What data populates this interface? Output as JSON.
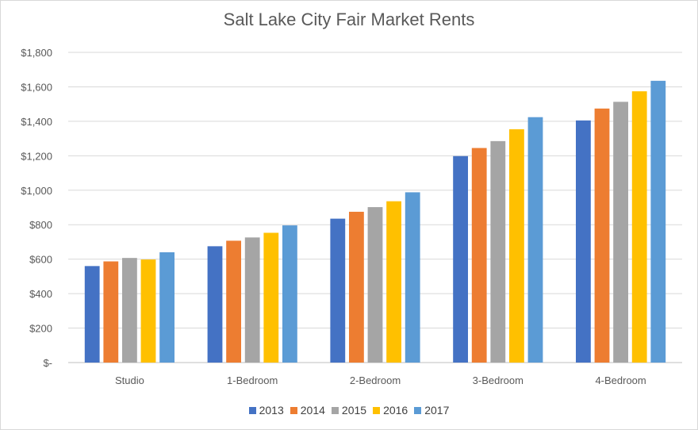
{
  "chart_data": {
    "type": "bar",
    "title": "Salt Lake City Fair Market Rents",
    "xlabel": "",
    "ylabel": "",
    "categories": [
      "Studio",
      "1-Bedroom",
      "2-Bedroom",
      "3-Bedroom",
      "4-Bedroom"
    ],
    "series": [
      {
        "name": "2013",
        "color": "#4472c4",
        "values": [
          560,
          675,
          835,
          1198,
          1405
        ]
      },
      {
        "name": "2014",
        "color": "#ed7d31",
        "values": [
          587,
          707,
          875,
          1245,
          1474
        ]
      },
      {
        "name": "2015",
        "color": "#a5a5a5",
        "values": [
          607,
          726,
          902,
          1285,
          1513
        ]
      },
      {
        "name": "2016",
        "color": "#ffc000",
        "values": [
          598,
          753,
          936,
          1354,
          1574
        ]
      },
      {
        "name": "2017",
        "color": "#5b9bd5",
        "values": [
          640,
          796,
          988,
          1424,
          1635
        ]
      }
    ],
    "ylim": [
      0,
      1800
    ],
    "y_ticks": [
      {
        "value": 0,
        "label": "$-"
      },
      {
        "value": 200,
        "label": "$200"
      },
      {
        "value": 400,
        "label": "$400"
      },
      {
        "value": 600,
        "label": "$600"
      },
      {
        "value": 800,
        "label": "$800"
      },
      {
        "value": 1000,
        "label": "$1,000"
      },
      {
        "value": 1200,
        "label": "$1,200"
      },
      {
        "value": 1400,
        "label": "$1,400"
      },
      {
        "value": 1600,
        "label": "$1,600"
      },
      {
        "value": 1800,
        "label": "$1,800"
      }
    ],
    "grid": true,
    "legend_position": "bottom"
  }
}
